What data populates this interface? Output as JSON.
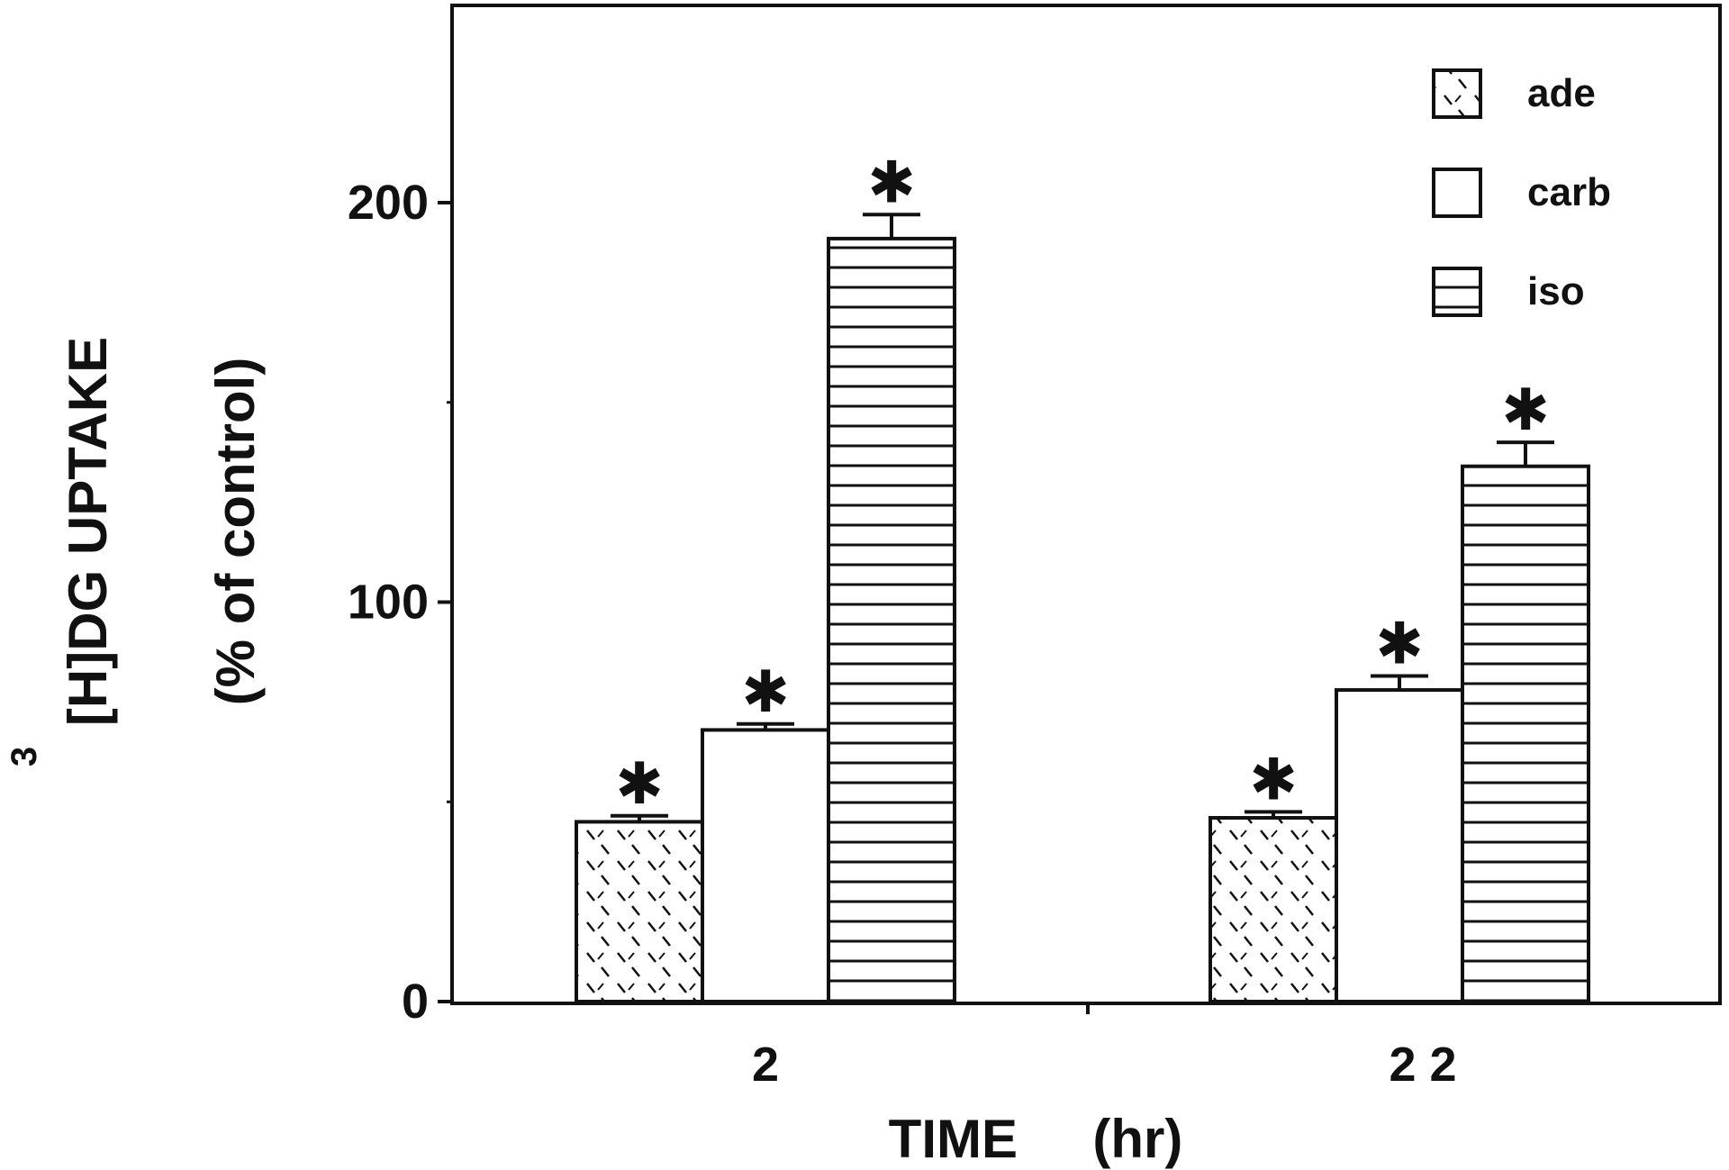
{
  "chart_data": {
    "type": "bar",
    "categories": [
      "2",
      "2 2"
    ],
    "series": [
      {
        "name": "ade",
        "values": [
          45,
          46
        ],
        "errors": [
          1.5,
          1.5
        ],
        "pattern": "dashed-diagonal",
        "significant": [
          true,
          true
        ]
      },
      {
        "name": "carb",
        "values": [
          68,
          78
        ],
        "errors": [
          1.5,
          3.5
        ],
        "pattern": "blank",
        "significant": [
          true,
          true
        ]
      },
      {
        "name": "iso",
        "values": [
          191,
          134
        ],
        "errors": [
          6,
          6
        ],
        "pattern": "horizontal-lines",
        "significant": [
          true,
          true
        ]
      }
    ],
    "xlabel": "TIME     (hr)",
    "ylabel_line1": "[H]DG   UPTAKE",
    "ylabel_superscript": "3",
    "ylabel_line2": "(%   of  control)",
    "yticks": [
      "0",
      "100",
      "200"
    ],
    "ylim": [
      0,
      250
    ],
    "significance_marker": "✱",
    "legend_placement": "top-right",
    "grid": false,
    "colors": {
      "ink": "#111111",
      "background": "#ffffff"
    }
  }
}
